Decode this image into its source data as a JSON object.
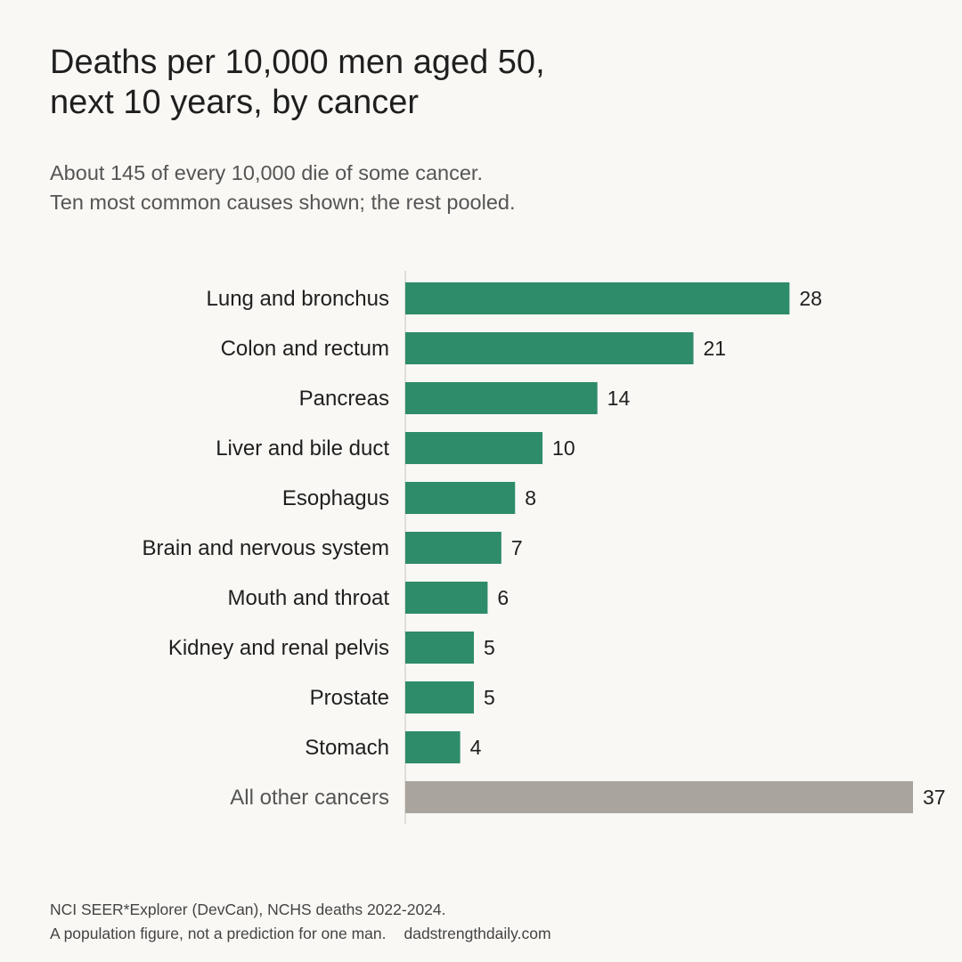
{
  "header": {
    "title_lines": [
      "Deaths per 10,000 men aged 50,",
      "next 10 years, by cancer"
    ],
    "subtitle_lines": [
      "About 145 of every 10,000 die of some cancer.",
      "Ten most common causes shown; the rest pooled."
    ]
  },
  "footer": {
    "source": "NCI SEER*Explorer (DevCan), NCHS deaths 2022-2024.",
    "note": "A population figure, not a prediction for one man.",
    "website": "dadstrengthdaily.com"
  },
  "colors": {
    "highlight": "#2e8c6a",
    "muted": "#a9a49e",
    "axis": "#d8d5cf",
    "label": "#1f1f1f",
    "label_muted": "#555555",
    "background": "#f9f8f4"
  },
  "chart_data": {
    "type": "bar",
    "orientation": "horizontal",
    "title": "Deaths per 10,000 men aged 50, next 10 years, by cancer",
    "categories": [
      "Lung and bronchus",
      "Colon and rectum",
      "Pancreas",
      "Liver and bile duct",
      "Esophagus",
      "Brain and nervous system",
      "Mouth and throat",
      "Kidney and renal pelvis",
      "Prostate",
      "Stomach",
      "All other cancers"
    ],
    "values": [
      28,
      21,
      14,
      10,
      8,
      7,
      6,
      5,
      5,
      4,
      37
    ],
    "muted_categories": [
      "All other cancers"
    ],
    "xlim": [
      0,
      37
    ],
    "grid": false,
    "legend": "none"
  }
}
